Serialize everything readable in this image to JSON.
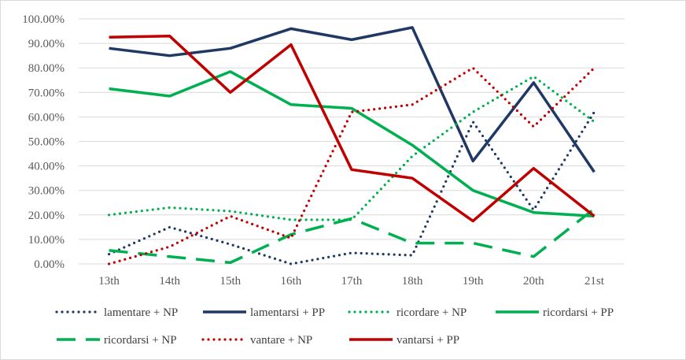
{
  "chart_data": {
    "type": "line",
    "title": "",
    "xlabel": "",
    "ylabel": "",
    "categories": [
      "13th",
      "14th",
      "15th",
      "16th",
      "17th",
      "18th",
      "19th",
      "20th",
      "21st"
    ],
    "ylim": [
      0,
      100
    ],
    "yticks": [
      "0.00%",
      "10.00%",
      "20.00%",
      "30.00%",
      "40.00%",
      "50.00%",
      "60.00%",
      "70.00%",
      "80.00%",
      "90.00%",
      "100.00%"
    ],
    "grid": "horizontal",
    "legend_position": "bottom",
    "series": [
      {
        "name": "lamentare + NP",
        "color": "#203864",
        "style": "dotted",
        "values": [
          4,
          15,
          8,
          0,
          4.5,
          3.5,
          58,
          22,
          62
        ]
      },
      {
        "name": "lamentarsi + PP",
        "color": "#203864",
        "style": "solid",
        "values": [
          88,
          85,
          88,
          96,
          91.5,
          96.5,
          42,
          74,
          37.5
        ]
      },
      {
        "name": "ricordare + NP",
        "color": "#00b050",
        "style": "dotted",
        "values": [
          20,
          23,
          21.5,
          18,
          18,
          44,
          62,
          76.5,
          58
        ]
      },
      {
        "name": "ricordarsi + PP",
        "color": "#00b050",
        "style": "solid",
        "values": [
          71.5,
          68.5,
          78.5,
          65,
          63.5,
          48.5,
          30,
          21,
          19.5
        ]
      },
      {
        "name": "ricordarsi + NP",
        "color": "#00b050",
        "style": "dashed",
        "values": [
          5.5,
          3,
          0.5,
          12,
          18.5,
          8.5,
          8.5,
          3,
          22.5
        ]
      },
      {
        "name": "vantare + NP",
        "color": "#c00000",
        "style": "dotted",
        "values": [
          0,
          7,
          19.5,
          10.5,
          62,
          65,
          80,
          56,
          80
        ]
      },
      {
        "name": "vantarsi + PP",
        "color": "#c00000",
        "style": "solid",
        "values": [
          92.5,
          93,
          70,
          89.5,
          38.5,
          35,
          17.5,
          39,
          19.5
        ]
      }
    ]
  }
}
